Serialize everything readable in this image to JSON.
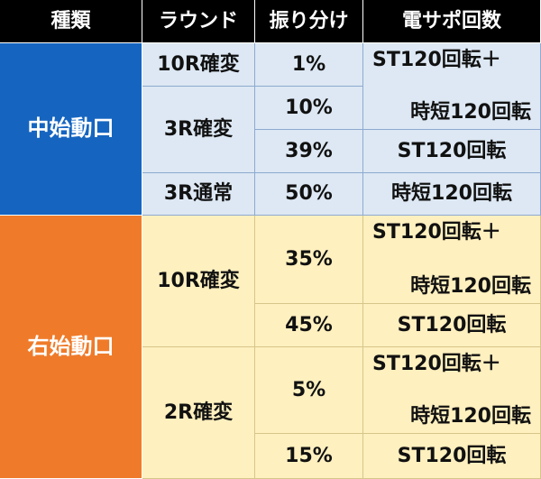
{
  "header": {
    "type": "種類",
    "round": "ラウンド",
    "distribution": "振り分け",
    "support": "電サポ回数"
  },
  "groups": [
    {
      "type": "中始動口",
      "rows": [
        {
          "round": "10R確変",
          "pct": "1%"
        },
        {
          "round": "3R確変",
          "pct": "10%"
        },
        {
          "pct": "39%"
        },
        {
          "round": "3R通常",
          "pct": "50%"
        }
      ],
      "support": [
        {
          "line1": "ST120回転＋",
          "line2": "時短120回転"
        },
        {
          "text": "ST120回転"
        },
        {
          "text": "時短120回転"
        }
      ]
    },
    {
      "type": "右始動口",
      "rows": [
        {
          "round": "10R確変",
          "pct": "35%"
        },
        {
          "pct": "45%"
        },
        {
          "round": "2R確変",
          "pct": "5%"
        },
        {
          "pct": "15%"
        }
      ],
      "support": [
        {
          "line1": "ST120回転＋",
          "line2": "時短120回転"
        },
        {
          "text": "ST120回転"
        },
        {
          "line1": "ST120回転＋",
          "line2": "時短120回転"
        },
        {
          "text": "ST120回転"
        }
      ]
    }
  ]
}
